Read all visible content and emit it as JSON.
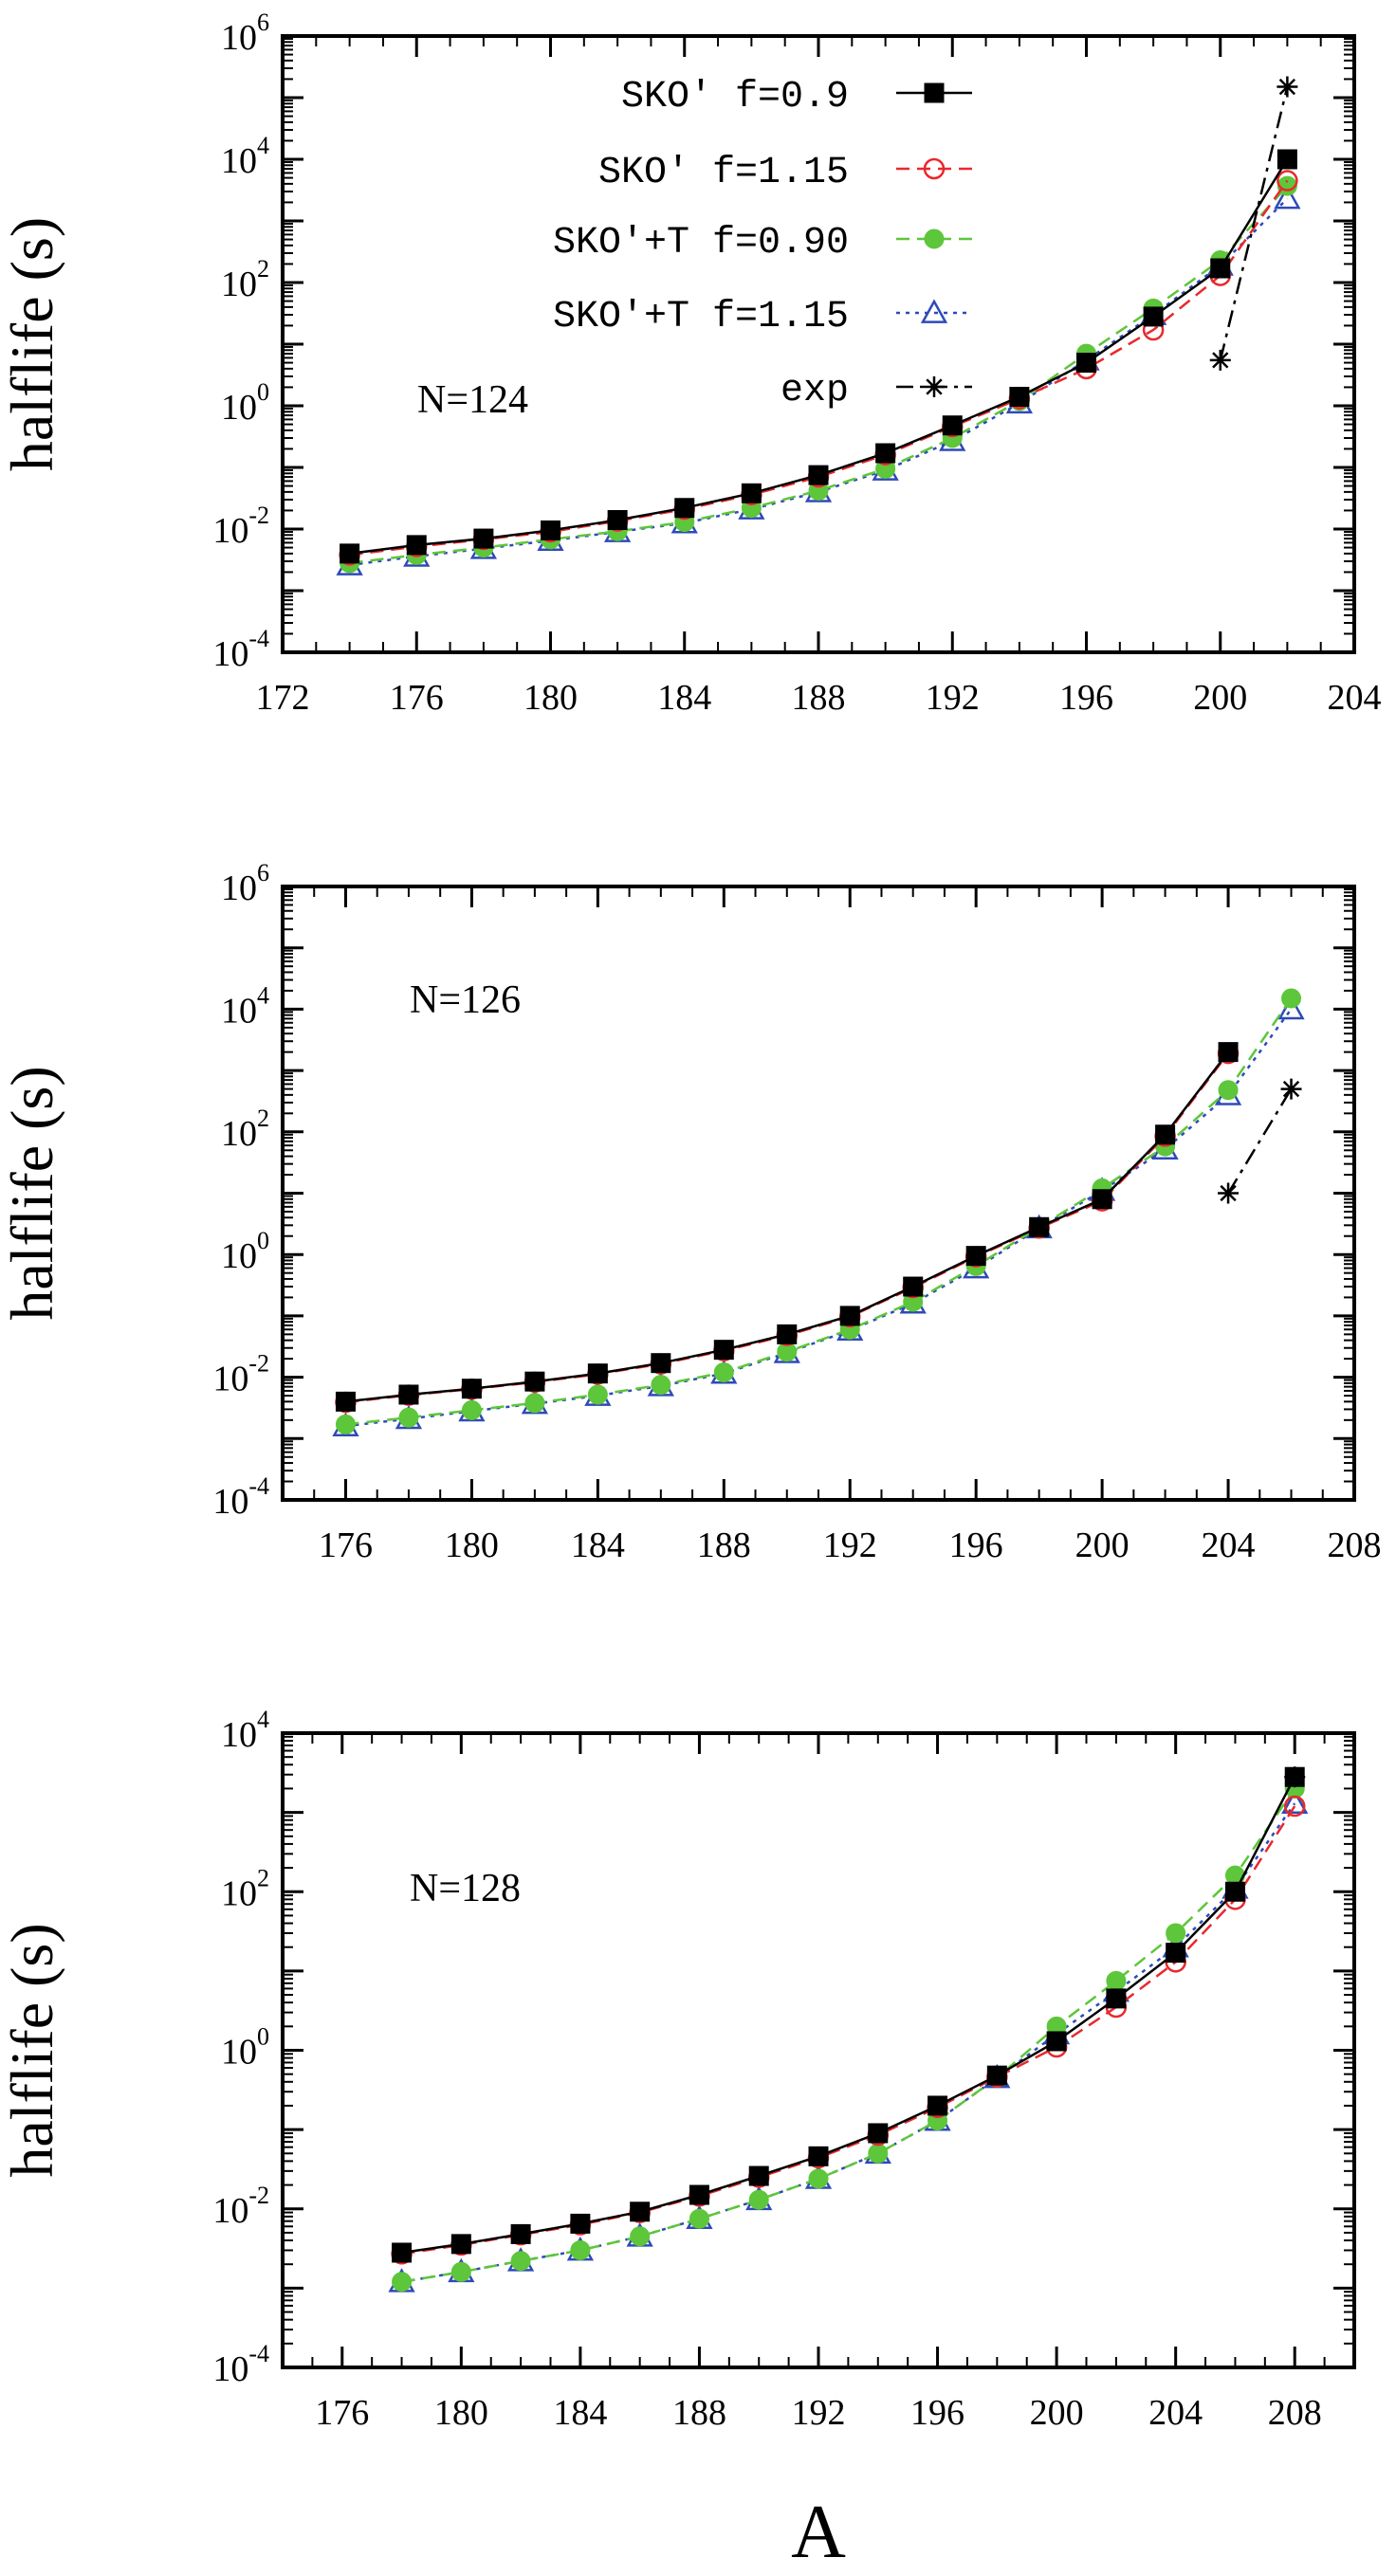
{
  "chart_data": [
    {
      "type": "line",
      "ylabel": "halflife (s)",
      "xlabel": "",
      "annotation": "N=124",
      "xlim": [
        172,
        204
      ],
      "xticks": [
        "172",
        "176",
        "180",
        "184",
        "188",
        "192",
        "196",
        "200",
        "204"
      ],
      "ylog": true,
      "ylim_exp": [
        -4,
        6
      ],
      "ytick_exps": [
        -4,
        -2,
        0,
        2,
        4,
        6
      ],
      "grid": false,
      "legend": "top-right",
      "series": [
        {
          "name": "SKO′  f=0.9",
          "color": "#000000",
          "marker": "square-filled",
          "dash": "solid",
          "x": [
            174,
            176,
            178,
            180,
            182,
            184,
            186,
            188,
            190,
            192,
            194,
            196,
            198,
            200,
            202
          ],
          "y": [
            0.004,
            0.0055,
            0.007,
            0.0095,
            0.014,
            0.022,
            0.038,
            0.075,
            0.17,
            0.48,
            1.4,
            5,
            28,
            170,
            10000
          ]
        },
        {
          "name": "SKO′  f=1.15",
          "color": "#e8292d",
          "marker": "circle-open",
          "dash": "dashed",
          "x": [
            174,
            176,
            178,
            180,
            182,
            184,
            186,
            188,
            190,
            192,
            194,
            196,
            198,
            200,
            202
          ],
          "y": [
            0.0038,
            0.0052,
            0.0068,
            0.009,
            0.0135,
            0.021,
            0.036,
            0.07,
            0.16,
            0.46,
            1.3,
            4,
            17,
            130,
            4500
          ]
        },
        {
          "name": "SKO′+T  f=0.90",
          "color": "#5dc63a",
          "marker": "circle-filled",
          "dash": "dashed",
          "x": [
            174,
            176,
            178,
            180,
            182,
            184,
            186,
            188,
            190,
            192,
            194,
            196,
            198,
            200,
            202
          ],
          "y": [
            0.0028,
            0.0038,
            0.005,
            0.0068,
            0.0092,
            0.013,
            0.022,
            0.042,
            0.095,
            0.3,
            1.2,
            7,
            38,
            230,
            3700
          ]
        },
        {
          "name": "SKO′+T  f=1.15",
          "color": "#2e4ab8",
          "marker": "triangle-open",
          "dash": "dotted",
          "x": [
            174,
            176,
            178,
            180,
            182,
            184,
            186,
            188,
            190,
            192,
            194,
            196,
            198,
            200,
            202
          ],
          "y": [
            0.0026,
            0.0036,
            0.0048,
            0.0065,
            0.009,
            0.0125,
            0.021,
            0.04,
            0.09,
            0.27,
            1.1,
            5.5,
            30,
            190,
            2300
          ]
        },
        {
          "name": "exp",
          "color": "#000000",
          "marker": "star",
          "dash": "dashdot",
          "x": [
            200,
            202
          ],
          "y": [
            5.5,
            150000
          ]
        }
      ]
    },
    {
      "type": "line",
      "ylabel": "halflife (s)",
      "xlabel": "",
      "annotation": "N=126",
      "xlim": [
        174,
        208
      ],
      "xticks": [
        "176",
        "180",
        "184",
        "188",
        "192",
        "196",
        "200",
        "204",
        "208"
      ],
      "ylog": true,
      "ylim_exp": [
        -4,
        6
      ],
      "ytick_exps": [
        -4,
        -2,
        0,
        2,
        4,
        6
      ],
      "grid": false,
      "series": [
        {
          "name": "SKO′  f=0.9",
          "color": "#000000",
          "marker": "square-filled",
          "dash": "solid",
          "x": [
            176,
            178,
            180,
            182,
            184,
            186,
            188,
            190,
            192,
            194,
            196,
            198,
            200,
            202,
            204
          ],
          "y": [
            0.004,
            0.0052,
            0.0065,
            0.0085,
            0.0115,
            0.017,
            0.028,
            0.05,
            0.1,
            0.3,
            0.95,
            2.8,
            8,
            90,
            2000
          ]
        },
        {
          "name": "SKO′  f=1.15",
          "color": "#e8292d",
          "marker": "circle-open",
          "dash": "dashed",
          "x": [
            176,
            178,
            180,
            182,
            184,
            186,
            188,
            190,
            192,
            194,
            196,
            198,
            200,
            202,
            204
          ],
          "y": [
            0.0039,
            0.0051,
            0.0064,
            0.0083,
            0.0112,
            0.0165,
            0.027,
            0.048,
            0.097,
            0.29,
            0.92,
            2.7,
            7.5,
            85,
            1900
          ]
        },
        {
          "name": "SKO′+T  f=0.90",
          "color": "#5dc63a",
          "marker": "circle-filled",
          "dash": "dashed",
          "x": [
            176,
            178,
            180,
            182,
            184,
            186,
            188,
            190,
            192,
            194,
            196,
            198,
            200,
            202,
            204,
            206
          ],
          "y": [
            0.0017,
            0.0022,
            0.0029,
            0.0038,
            0.0052,
            0.0075,
            0.012,
            0.026,
            0.06,
            0.17,
            0.65,
            2.8,
            12,
            58,
            480,
            15000
          ]
        },
        {
          "name": "SKO′+T  f=1.15",
          "color": "#2e4ab8",
          "marker": "triangle-open",
          "dash": "dotted",
          "x": [
            176,
            178,
            180,
            182,
            184,
            186,
            188,
            190,
            192,
            194,
            196,
            198,
            200,
            202,
            204,
            206
          ],
          "y": [
            0.0016,
            0.0021,
            0.0028,
            0.0037,
            0.005,
            0.0072,
            0.0115,
            0.025,
            0.058,
            0.16,
            0.6,
            2.7,
            11,
            52,
            400,
            10000
          ]
        },
        {
          "name": "exp",
          "color": "#000000",
          "marker": "star",
          "dash": "dashdot",
          "x": [
            204,
            206
          ],
          "y": [
            10,
            500
          ]
        }
      ]
    },
    {
      "type": "line",
      "ylabel": "halflife (s)",
      "xlabel": "A",
      "annotation": "N=128",
      "xlim": [
        174,
        210
      ],
      "xticks": [
        "176",
        "180",
        "184",
        "188",
        "192",
        "196",
        "200",
        "204",
        "208"
      ],
      "ylog": true,
      "ylim_exp": [
        -4,
        4
      ],
      "ytick_exps": [
        -4,
        -2,
        0,
        2,
        4
      ],
      "grid": false,
      "series": [
        {
          "name": "SKO′  f=0.9",
          "color": "#000000",
          "marker": "square-filled",
          "dash": "solid",
          "x": [
            178,
            180,
            182,
            184,
            186,
            188,
            190,
            192,
            194,
            196,
            198,
            200,
            202,
            204,
            206,
            208
          ],
          "y": [
            0.0028,
            0.0036,
            0.0048,
            0.0065,
            0.0092,
            0.015,
            0.026,
            0.046,
            0.09,
            0.2,
            0.48,
            1.3,
            4.5,
            17,
            100,
            2800
          ]
        },
        {
          "name": "SKO′  f=1.15",
          "color": "#e8292d",
          "marker": "circle-open",
          "dash": "dashed",
          "x": [
            178,
            180,
            182,
            184,
            186,
            188,
            190,
            192,
            194,
            196,
            198,
            200,
            202,
            204,
            206,
            208
          ],
          "y": [
            0.0027,
            0.0035,
            0.0047,
            0.0063,
            0.009,
            0.0145,
            0.025,
            0.044,
            0.085,
            0.19,
            0.46,
            1.1,
            3.5,
            13,
            80,
            1200
          ]
        },
        {
          "name": "SKO′+T  f=0.90",
          "color": "#5dc63a",
          "marker": "circle-filled",
          "dash": "dashed",
          "x": [
            178,
            180,
            182,
            184,
            186,
            188,
            190,
            192,
            194,
            196,
            198,
            200,
            202,
            204,
            206,
            208
          ],
          "y": [
            0.0012,
            0.0016,
            0.0022,
            0.003,
            0.0045,
            0.0075,
            0.013,
            0.024,
            0.05,
            0.13,
            0.45,
            2,
            7.5,
            30,
            160,
            2000
          ]
        },
        {
          "name": "SKO′+T  f=1.15",
          "color": "#2e4ab8",
          "marker": "triangle-open",
          "dash": "dotted",
          "x": [
            178,
            180,
            182,
            184,
            186,
            188,
            190,
            192,
            194,
            196,
            198,
            200,
            202,
            204,
            206,
            208
          ],
          "y": [
            0.0012,
            0.0016,
            0.0022,
            0.003,
            0.0045,
            0.0075,
            0.013,
            0.024,
            0.05,
            0.13,
            0.45,
            1.6,
            5.5,
            20,
            110,
            1300
          ]
        },
        {
          "name": "exp",
          "color": "#000000",
          "marker": "star",
          "dash": "dashdot",
          "x": [
            208
          ],
          "y": [
            2800
          ]
        }
      ]
    }
  ]
}
